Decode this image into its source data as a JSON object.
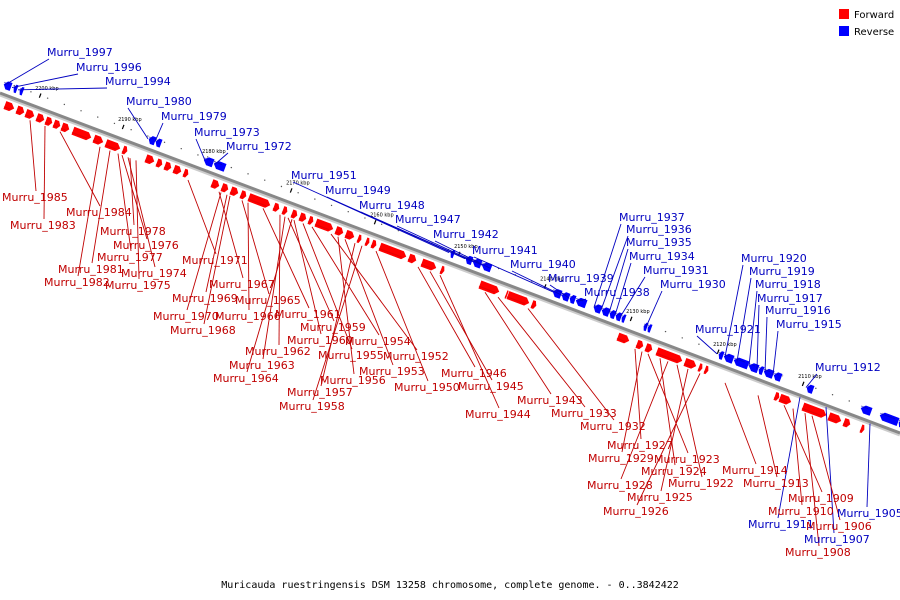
{
  "caption": "Muricauda ruestringensis DSM 13258 chromosome, complete genome. - 0..3842422",
  "legend": [
    {
      "label": "Forward",
      "color": "#ff0000"
    },
    {
      "label": "Reverse",
      "color": "#0000ff"
    }
  ],
  "colors": {
    "forward": "#ff0000",
    "reverse": "#0000ff",
    "forward_label": "#c00000",
    "reverse_label": "#0000c0",
    "backbone": "#888888"
  },
  "ticks": [
    "2200 kbp",
    "2190 kbp",
    "2180 kbp",
    "2170 kbp",
    "2160 kbp",
    "2150 kbp",
    "2140 kbp",
    "2130 kbp",
    "2120 kbp",
    "2110 kbp"
  ],
  "reverse_genes": [
    "Murru_1997",
    "Murru_1996",
    "Murru_1994",
    "Murru_1980",
    "Murru_1979",
    "Murru_1973",
    "Murru_1972",
    "Murru_1951",
    "Murru_1949",
    "Murru_1948",
    "Murru_1947",
    "Murru_1942",
    "Murru_1941",
    "Murru_1940",
    "Murru_1939",
    "Murru_1938",
    "Murru_1937",
    "Murru_1936",
    "Murru_1935",
    "Murru_1934",
    "Murru_1931",
    "Murru_1930",
    "Murru_1921",
    "Murru_1920",
    "Murru_1919",
    "Murru_1918",
    "Murru_1917",
    "Murru_1916",
    "Murru_1915",
    "Murru_1912",
    "Murru_1911",
    "Murru_1907",
    "Murru_1905"
  ],
  "forward_genes": [
    "Murru_1985",
    "Murru_1984",
    "Murru_1983",
    "Murru_1978",
    "Murru_1976",
    "Murru_1977",
    "Murru_1974",
    "Murru_1981",
    "Murru_1982",
    "Murru_1975",
    "Murru_1971",
    "Murru_1967",
    "Murru_1969",
    "Murru_1970",
    "Murru_1968",
    "Murru_1965",
    "Murru_1966",
    "Murru_1961",
    "Murru_1962",
    "Murru_1959",
    "Murru_1960",
    "Murru_1963",
    "Murru_1955",
    "Murru_1964",
    "Murru_1954",
    "Murru_1956",
    "Murru_1952",
    "Murru_1953",
    "Murru_1957",
    "Murru_1958",
    "Murru_1950",
    "Murru_1946",
    "Murru_1945",
    "Murru_1944",
    "Murru_1943",
    "Murru_1933",
    "Murru_1932",
    "Murru_1927",
    "Murru_1929",
    "Murru_1923",
    "Murru_1924",
    "Murru_1928",
    "Murru_1922",
    "Murru_1925",
    "Murru_1926",
    "Murru_1914",
    "Murru_1913",
    "Murru_1909",
    "Murru_1910",
    "Murru_1906",
    "Murru_1908"
  ]
}
